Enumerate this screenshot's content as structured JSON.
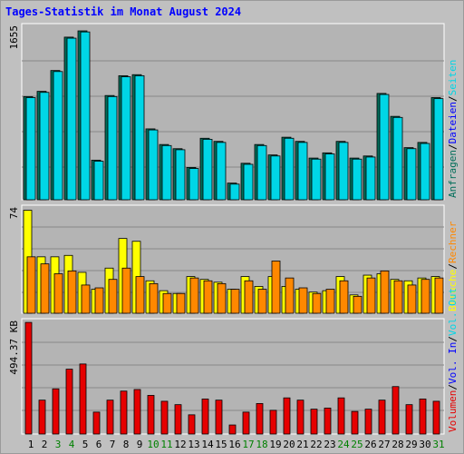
{
  "page": {
    "title": "Tages-Statistik im Monat August 2024"
  },
  "chart_data": {
    "type": "bar",
    "days": [
      "1",
      "2",
      "3",
      "4",
      "5",
      "6",
      "7",
      "8",
      "9",
      "10",
      "11",
      "12",
      "13",
      "14",
      "15",
      "16",
      "17",
      "18",
      "19",
      "20",
      "21",
      "22",
      "23",
      "24",
      "25",
      "26",
      "27",
      "28",
      "29",
      "30",
      "31"
    ],
    "weekend_days": [
      "3",
      "4",
      "10",
      "11",
      "17",
      "18",
      "24",
      "25",
      "31"
    ],
    "colors": {
      "background": "#c0c0c0",
      "plot_bg": "#b4b4b4",
      "grid": "#888888",
      "anfragen": "#006e5a",
      "dateien": "#00d6e6",
      "seiten": "#00d6e6",
      "besuche": "#ffff00",
      "rechner": "#ff8800",
      "volumen": "#e60000",
      "title": "#0000ff",
      "weekday_label": "#000000",
      "weekend_label": "#008000"
    },
    "panels": [
      {
        "id": "requests",
        "ymax_label": "1655",
        "ymax": 1655,
        "legend": [
          {
            "text": "Anfragen",
            "color": "#006e5a"
          },
          {
            "text": "/",
            "color": "#000000"
          },
          {
            "text": "Dateien",
            "color": "#0000ff"
          },
          {
            "text": "/",
            "color": "#000000"
          },
          {
            "text": "Seiten",
            "color": "#00d6e6"
          }
        ],
        "series": [
          {
            "name": "Anfragen",
            "values": [
              990,
              1040,
              1240,
              1560,
              1620,
              380,
              1000,
              1190,
              1200,
              680,
              530,
              490,
              310,
              590,
              560,
              160,
              350,
              530,
              430,
              600,
              560,
              400,
              450,
              560,
              400,
              420,
              1020,
              800,
              500,
              550,
              980
            ]
          },
          {
            "name": "Dateien",
            "values": [
              980,
              1030,
              1230,
              1550,
              1610,
              370,
              990,
              1180,
              1190,
              670,
              520,
              480,
              300,
              580,
              550,
              150,
              340,
              520,
              420,
              590,
              550,
              390,
              440,
              550,
              390,
              410,
              1010,
              790,
              490,
              540,
              970
            ]
          }
        ]
      },
      {
        "id": "visits",
        "ymax_label": "74",
        "ymax": 74,
        "legend": [
          {
            "text": "Besuche",
            "color": "#ffff00"
          },
          {
            "text": "/",
            "color": "#000000"
          },
          {
            "text": "Rechner",
            "color": "#ff8800"
          }
        ],
        "series": [
          {
            "name": "Besuche",
            "values": [
              73,
              40,
              40,
              41,
              29,
              17,
              32,
              53,
              51,
              23,
              16,
              14,
              26,
              24,
              22,
              17,
              26,
              19,
              26,
              19,
              17,
              15,
              16,
              26,
              13,
              27,
              28,
              24,
              23,
              25,
              26
            ]
          },
          {
            "name": "Rechner",
            "values": [
              40,
              35,
              28,
              30,
              20,
              18,
              24,
              32,
              26,
              21,
              14,
              14,
              25,
              23,
              21,
              17,
              23,
              17,
              37,
              25,
              18,
              14,
              17,
              23,
              12,
              25,
              30,
              23,
              20,
              24,
              25
            ]
          }
        ]
      },
      {
        "id": "volume",
        "ymax_label": "494.37 KB",
        "ymax": 494.37,
        "legend": [
          {
            "text": "Volumen",
            "color": "#e60000"
          },
          {
            "text": "/",
            "color": "#000000"
          },
          {
            "text": "Vol. In",
            "color": "#0000ff"
          },
          {
            "text": "/",
            "color": "#000000"
          },
          {
            "text": "Vol. Out",
            "color": "#00d6e6"
          }
        ],
        "series": [
          {
            "name": "Volumen",
            "values": [
              494,
              150,
              200,
              287,
              310,
              97,
              150,
              190,
              197,
              171,
              145,
              130,
              85,
              155,
              150,
              40,
              97,
              135,
              105,
              160,
              150,
              110,
              115,
              160,
              100,
              110,
              150,
              210,
              130,
              155,
              145
            ]
          }
        ]
      }
    ]
  }
}
